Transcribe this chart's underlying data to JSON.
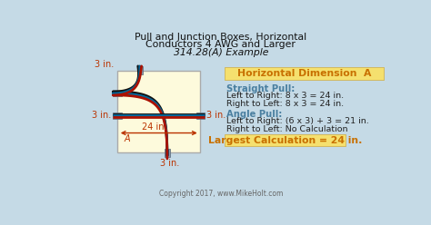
{
  "title_line1": "Pull and Junction Boxes, Horizontal",
  "title_line2": "Conductors 4 AWG and Larger",
  "title_line3": "314.28(A) Example",
  "bg_color": "#c5dae6",
  "box_fill": "#fdfadc",
  "header_box_fill": "#f5e06e",
  "result_box_fill": "#f5e06e",
  "label_color_red": "#bb3300",
  "label_color_teal": "#4a7fa0",
  "label_color_dark": "#222222",
  "label_color_orange": "#c87000",
  "dim_label_3in": "3 in.",
  "dim_label_24in": "24 in.",
  "dim_label_A": "A",
  "header_text": "Horizontal Dimension  A",
  "straight_pull_header": "Straight Pull:",
  "straight_pull_line1": "Left to Right: 8 x 3 = 24 in.",
  "straight_pull_line2": "Right to Left: 8 x 3 = 24 in.",
  "angle_pull_header": "Angle Pull:",
  "angle_pull_line1": "Left to Right: (6 x 3) + 3 = 21 in.",
  "angle_pull_line2": "Right to Left: No Calculation",
  "result_text": "Largest Calculation = 24 in.",
  "copyright": "Copyright 2017, www.MikeHolt.com",
  "wire_black": "#111111",
  "wire_red": "#aa1100",
  "wire_blue": "#224488",
  "wire_teal": "#006699",
  "conn_face": "#8899aa",
  "conn_blue": "#335577"
}
